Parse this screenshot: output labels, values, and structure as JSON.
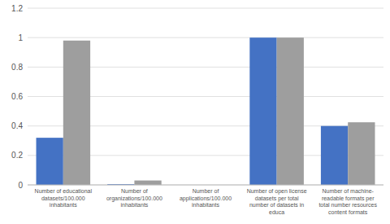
{
  "chart_data": {
    "type": "bar",
    "categories": [
      "Number of educational\ndatasets/100.000\ninhabitants",
      "Number of\norganizations/100.000\ninhabitants",
      "Number of\napplications/100.000\ninhabitants",
      "Number of open license\ndatasets per total\nnumber of datasets in\neduca",
      "Number of machine-\nreadable formats per\ntotal number resources\ncontent formats"
    ],
    "series": [
      {
        "color": "#4472C4",
        "values": [
          0.32,
          0.005,
          0.0,
          1.0,
          0.4
        ]
      },
      {
        "color": "#9E9E9E",
        "values": [
          0.98,
          0.03,
          0.0,
          1.0,
          0.425
        ]
      }
    ],
    "ylim": [
      0,
      1.2
    ],
    "yticks": [
      0,
      0.2,
      0.4,
      0.6,
      0.8,
      1.0,
      1.2
    ],
    "grid": true
  }
}
